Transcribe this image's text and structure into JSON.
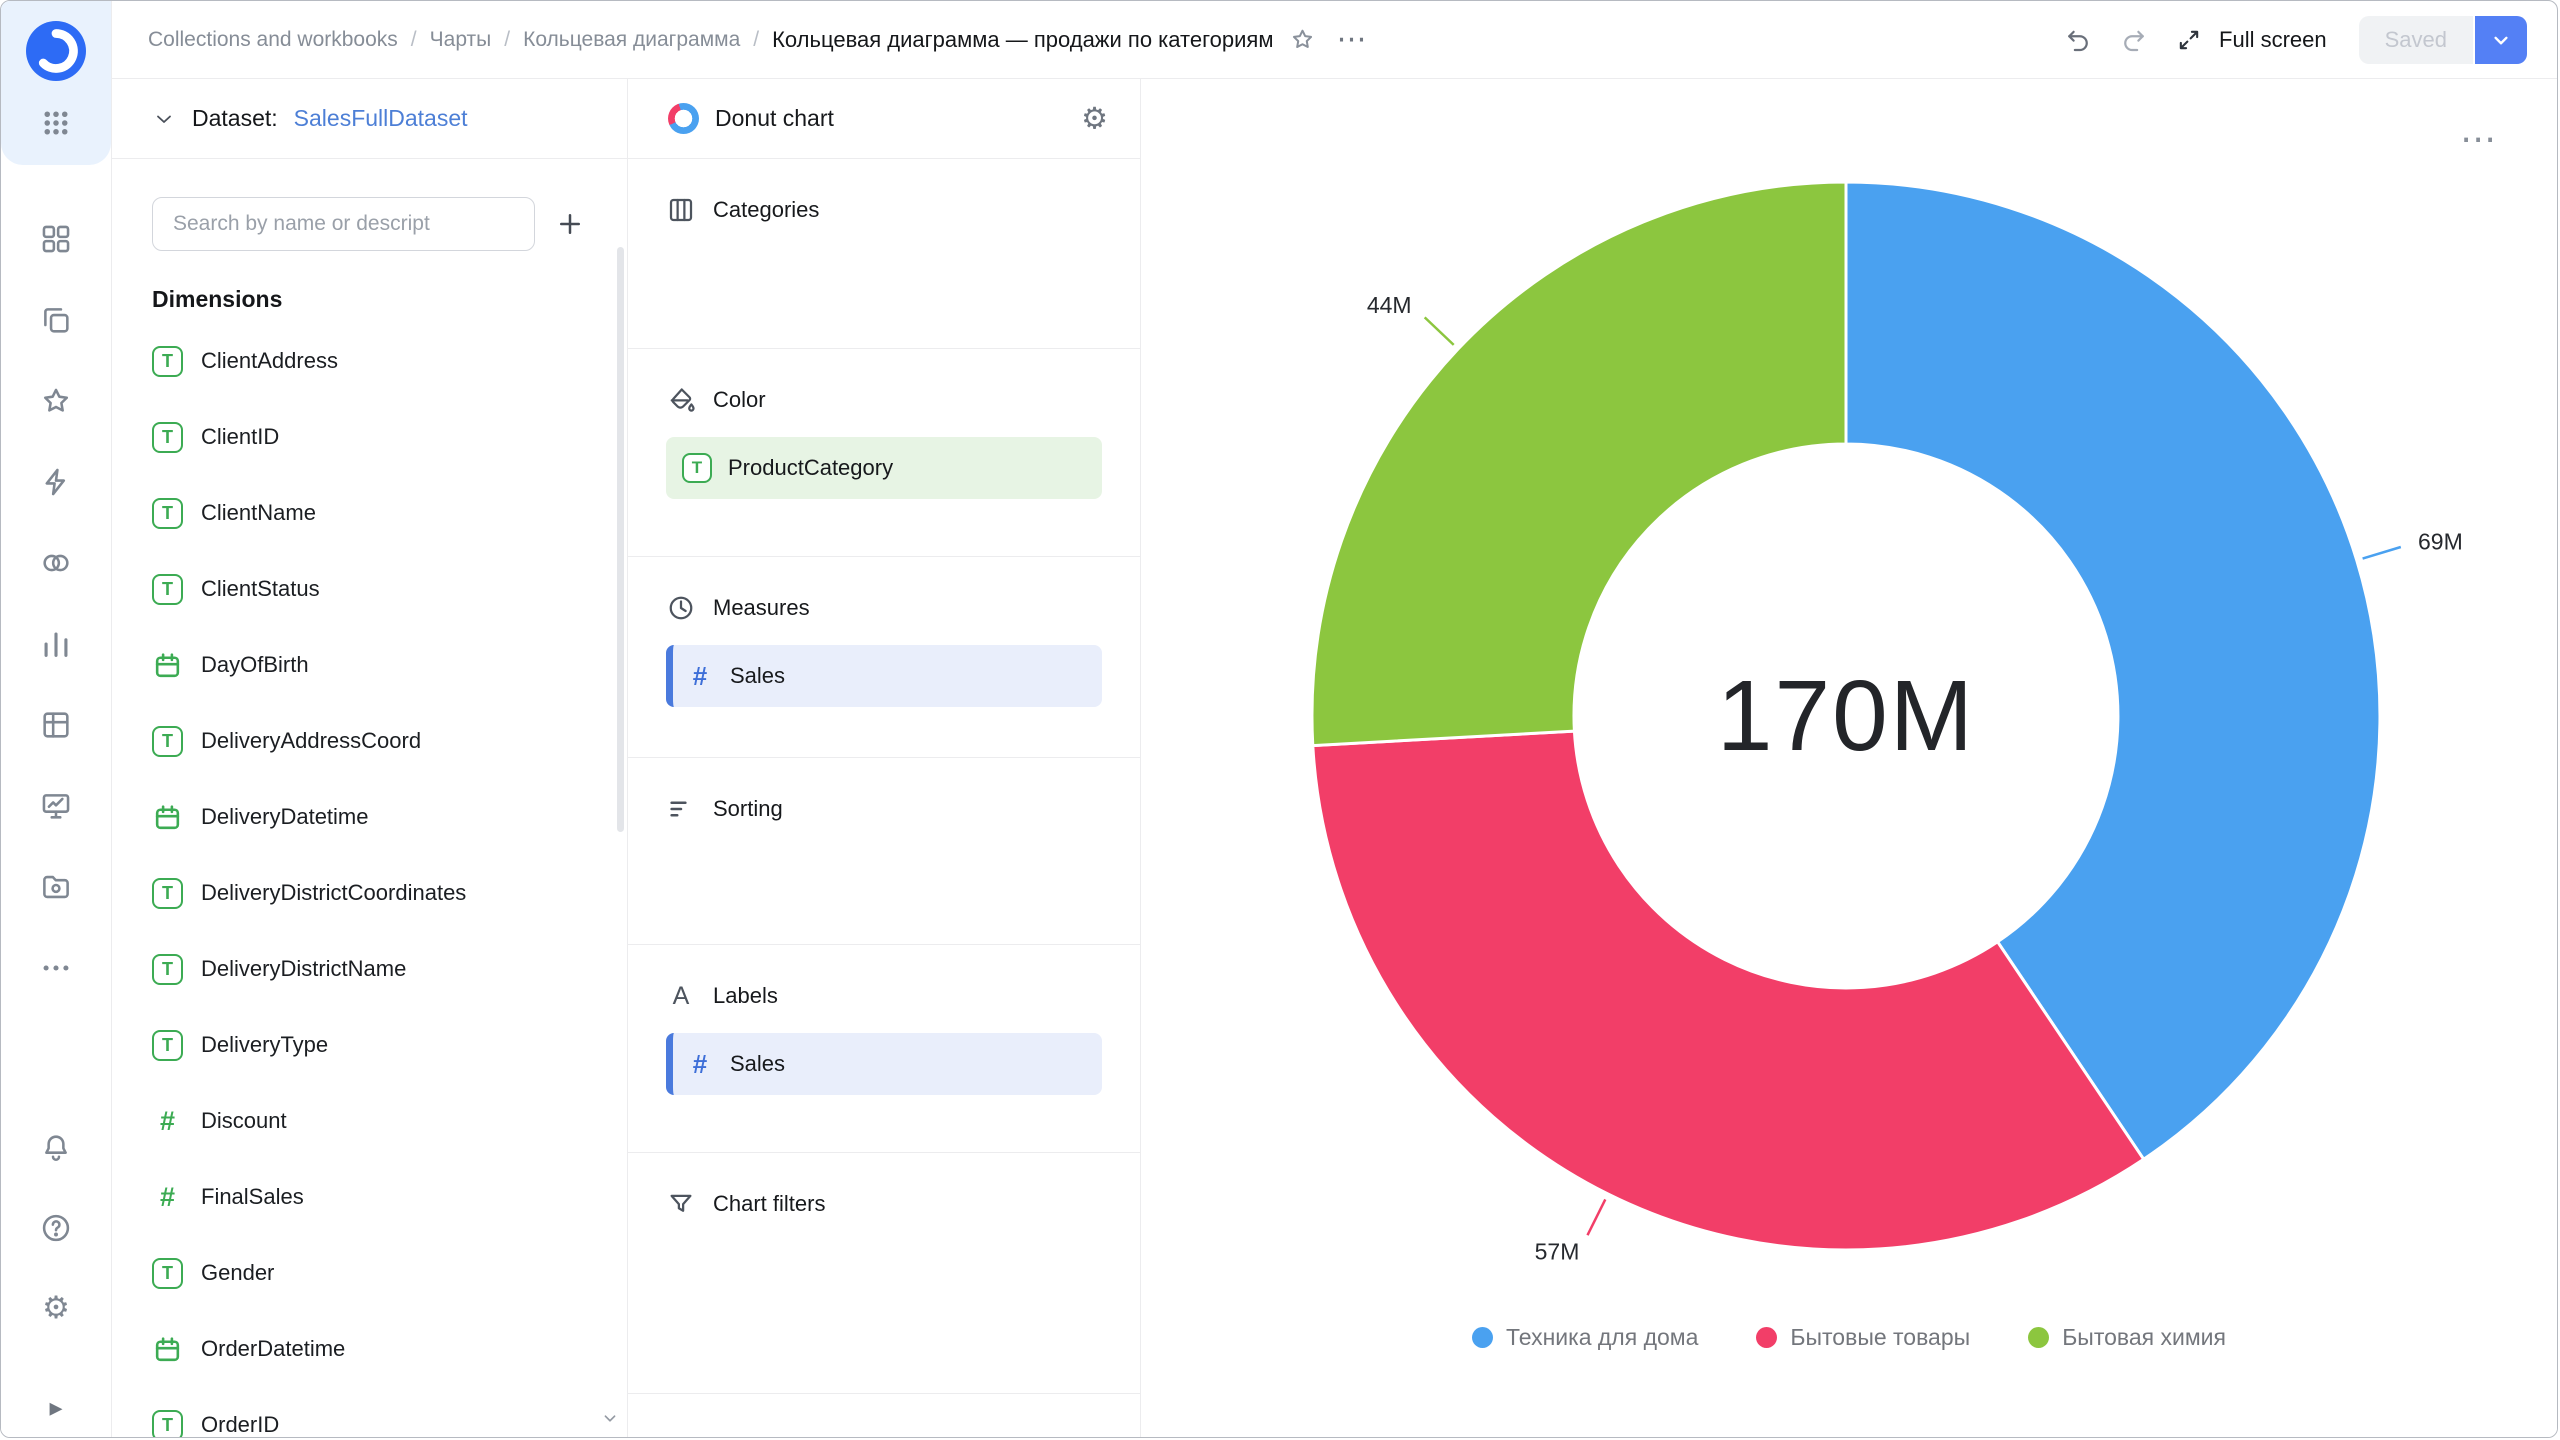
{
  "icons": {
    "ellipsis": "⋯",
    "gear": "⚙",
    "text_field": "T",
    "number_field": "#",
    "labels_a": "A",
    "separator": "/",
    "expand_arrow": "▸"
  },
  "topbar": {
    "breadcrumbs": [
      "Collections and workbooks",
      "Чарты",
      "Кольцевая диаграмма"
    ],
    "current_title": "Кольцевая диаграмма — продажи по категориям",
    "full_screen": "Full screen",
    "saved": "Saved"
  },
  "sidebar": {
    "icon_names": [
      "datalens-logo",
      "apps-grid",
      "widgets",
      "collections",
      "favorites-star",
      "quick-actions",
      "services",
      "charts",
      "tables",
      "monitoring",
      "storage",
      "more",
      "notifications-bell",
      "help",
      "settings-gear",
      "expand-panel"
    ]
  },
  "dataset_panel": {
    "header_label": "Dataset:",
    "dataset_name": "SalesFullDataset",
    "search_placeholder": "Search by name or descript",
    "section_title": "Dimensions",
    "fields": [
      {
        "name": "ClientAddress",
        "type": "text"
      },
      {
        "name": "ClientID",
        "type": "text"
      },
      {
        "name": "ClientName",
        "type": "text"
      },
      {
        "name": "ClientStatus",
        "type": "text"
      },
      {
        "name": "DayOfBirth",
        "type": "date"
      },
      {
        "name": "DeliveryAddressCoord",
        "type": "text"
      },
      {
        "name": "DeliveryDatetime",
        "type": "date"
      },
      {
        "name": "DeliveryDistrictCoordinates",
        "type": "text"
      },
      {
        "name": "DeliveryDistrictName",
        "type": "text"
      },
      {
        "name": "DeliveryType",
        "type": "text"
      },
      {
        "name": "Discount",
        "type": "number"
      },
      {
        "name": "FinalSales",
        "type": "number"
      },
      {
        "name": "Gender",
        "type": "text"
      },
      {
        "name": "OrderDatetime",
        "type": "date"
      },
      {
        "name": "OrderID",
        "type": "text"
      }
    ]
  },
  "config_panel": {
    "chart_type": "Donut chart",
    "sections": [
      {
        "label": "Categories",
        "chips": []
      },
      {
        "label": "Color",
        "chips": [
          {
            "name": "ProductCategory",
            "kind": "dimension-text"
          }
        ]
      },
      {
        "label": "Measures",
        "chips": [
          {
            "name": "Sales",
            "kind": "measure-number"
          }
        ]
      },
      {
        "label": "Sorting",
        "chips": []
      },
      {
        "label": "Labels",
        "chips": [
          {
            "name": "Sales",
            "kind": "measure-number"
          }
        ]
      },
      {
        "label": "Chart filters",
        "chips": []
      }
    ]
  },
  "chart_data": {
    "type": "pie",
    "subtype": "donut",
    "title": "",
    "categories": [
      "Техника для дома",
      "Бытовые товары",
      "Бытовая химия"
    ],
    "values": [
      69,
      57,
      44
    ],
    "unit": "M",
    "value_labels": [
      "69M",
      "57M",
      "44M"
    ],
    "center_total": "170M",
    "colors": [
      "#4aa1f0",
      "#f23e68",
      "#8cc63f"
    ],
    "legend_position": "bottom",
    "start_angle_deg": 0,
    "direction": "clockwise",
    "inner_radius_ratio": 0.51
  }
}
